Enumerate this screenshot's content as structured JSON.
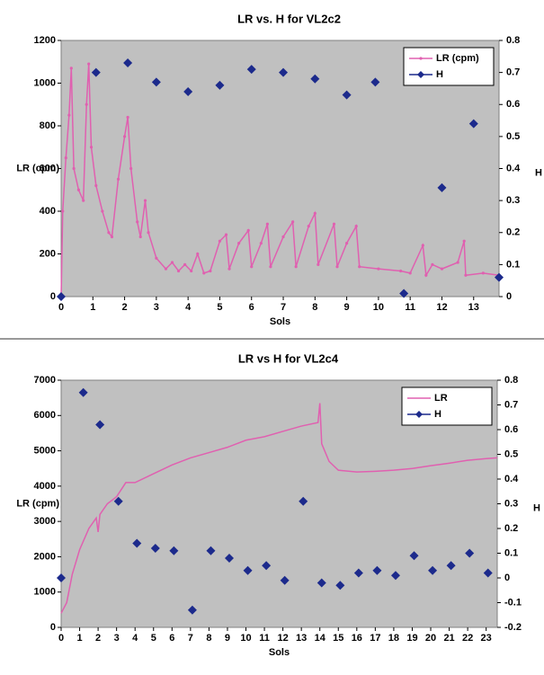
{
  "chart_data": [
    {
      "type": "line",
      "title": "LR vs. H for  VL2c2",
      "xlabel": "Sols",
      "ylabel": "LR (cpm)",
      "y2label": "H",
      "xlim": [
        0,
        13.8
      ],
      "xticks": [
        0,
        1,
        2,
        3,
        4,
        5,
        6,
        7,
        8,
        9,
        10,
        11,
        12,
        13
      ],
      "ylim": [
        0,
        1200
      ],
      "yticks": [
        0,
        200,
        400,
        600,
        800,
        1000,
        1200
      ],
      "y2lim": [
        0,
        0.8
      ],
      "y2ticks": [
        0,
        0.1,
        0.2,
        0.3,
        0.4,
        0.5,
        0.6,
        0.7,
        0.8
      ],
      "legend": "upper right",
      "series": [
        {
          "name": "LR (cpm)",
          "color": "#e060b0",
          "mode": "line-markers",
          "x": [
            0,
            0.05,
            0.15,
            0.25,
            0.32,
            0.4,
            0.55,
            0.7,
            0.8,
            0.87,
            0.95,
            1.1,
            1.3,
            1.5,
            1.6,
            1.8,
            2.0,
            2.1,
            2.2,
            2.4,
            2.5,
            2.65,
            2.75,
            3.0,
            3.3,
            3.5,
            3.7,
            3.9,
            4.1,
            4.3,
            4.5,
            4.7,
            5.0,
            5.2,
            5.3,
            5.6,
            5.9,
            6.0,
            6.3,
            6.5,
            6.6,
            7.0,
            7.3,
            7.4,
            7.8,
            8.0,
            8.1,
            8.6,
            8.7,
            9.0,
            9.3,
            9.4,
            10,
            10.7,
            11,
            11.4,
            11.5,
            11.7,
            12.0,
            12.5,
            12.7,
            12.75,
            13.3,
            13.8
          ],
          "values": [
            0,
            400,
            650,
            850,
            1070,
            600,
            500,
            450,
            900,
            1090,
            700,
            520,
            400,
            300,
            280,
            550,
            750,
            840,
            600,
            350,
            280,
            450,
            300,
            180,
            130,
            160,
            120,
            150,
            120,
            200,
            110,
            120,
            260,
            290,
            130,
            250,
            310,
            140,
            250,
            340,
            140,
            280,
            350,
            140,
            330,
            390,
            150,
            340,
            140,
            250,
            330,
            140,
            130,
            120,
            110,
            240,
            100,
            150,
            130,
            160,
            260,
            100,
            110,
            100
          ]
        },
        {
          "name": "H",
          "color": "#1c2a8c",
          "mode": "markers",
          "axis": "y2",
          "x": [
            0,
            1.1,
            2.1,
            3.0,
            4.0,
            5.0,
            6.0,
            7.0,
            8.0,
            9.0,
            9.9,
            10.8,
            12.0,
            13.0,
            13.8
          ],
          "values": [
            0,
            0.7,
            0.73,
            0.67,
            0.64,
            0.66,
            0.71,
            0.7,
            0.68,
            0.63,
            0.67,
            0.01,
            0.34,
            0.54,
            0.06
          ]
        }
      ]
    },
    {
      "type": "line",
      "title": "LR vs H for VL2c4",
      "xlabel": "Sols",
      "ylabel": "LR (cpm)",
      "y2label": "H",
      "xlim": [
        0,
        23.6
      ],
      "xticks": [
        0,
        1,
        2,
        3,
        4,
        5,
        6,
        7,
        8,
        9,
        10,
        11,
        12,
        13,
        14,
        15,
        16,
        17,
        18,
        19,
        20,
        21,
        22,
        23
      ],
      "ylim": [
        0,
        7000
      ],
      "yticks": [
        0,
        1000,
        2000,
        3000,
        4000,
        5000,
        6000,
        7000
      ],
      "y2lim": [
        -0.2,
        0.8
      ],
      "y2ticks": [
        -0.2,
        -0.1,
        0,
        0.1,
        0.2,
        0.3,
        0.4,
        0.5,
        0.6,
        0.7,
        0.8
      ],
      "legend": "upper right",
      "series": [
        {
          "name": "LR",
          "color": "#e060b0",
          "mode": "line",
          "x": [
            0,
            0.3,
            0.6,
            1,
            1.5,
            1.9,
            2.0,
            2.1,
            2.5,
            3,
            3.5,
            4,
            5,
            6,
            7,
            8,
            9,
            10,
            11,
            12,
            13,
            13.9,
            14.0,
            14.1,
            14.5,
            15,
            16,
            17,
            18,
            19,
            20,
            21,
            22,
            23,
            23.6
          ],
          "values": [
            400,
            700,
            1500,
            2200,
            2800,
            3100,
            2700,
            3200,
            3500,
            3700,
            4100,
            4100,
            4350,
            4600,
            4800,
            4950,
            5100,
            5300,
            5400,
            5550,
            5700,
            5800,
            6350,
            5200,
            4700,
            4450,
            4400,
            4420,
            4450,
            4500,
            4580,
            4650,
            4730,
            4780,
            4800
          ]
        },
        {
          "name": "H",
          "color": "#1c2a8c",
          "mode": "markers",
          "axis": "y2",
          "x": [
            0,
            1.2,
            2.1,
            3.1,
            4.1,
            5.1,
            6.1,
            7.1,
            8.1,
            9.1,
            10.1,
            11.1,
            12.1,
            13.1,
            14.1,
            15.1,
            16.1,
            17.1,
            18.1,
            19.1,
            20.1,
            21.1,
            22.1,
            23.1
          ],
          "values": [
            0,
            0.75,
            0.62,
            0.31,
            0.14,
            0.12,
            0.11,
            -0.13,
            0.11,
            0.08,
            0.03,
            0.05,
            -0.01,
            0.31,
            -0.02,
            -0.03,
            0.02,
            0.03,
            0.01,
            0.09,
            0.03,
            0.05,
            0.1,
            0.02
          ]
        }
      ]
    }
  ]
}
